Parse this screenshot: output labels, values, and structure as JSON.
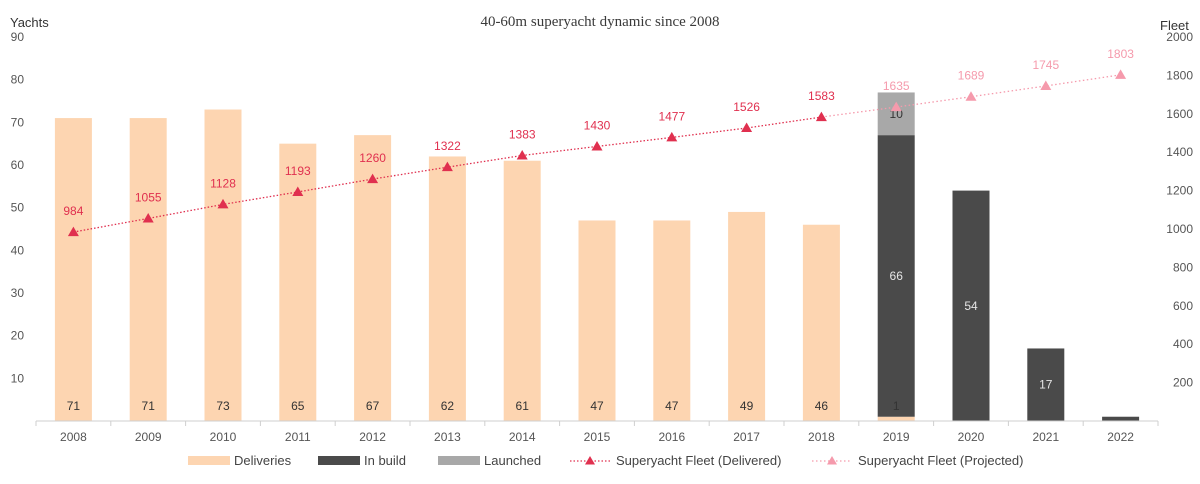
{
  "chart_data": {
    "type": "bar",
    "title": "40-60m superyacht dynamic since 2008",
    "y_left_label": "Yachts",
    "y_right_label": "Fleet",
    "y_left_lim": [
      0,
      90
    ],
    "y_left_ticks": [
      10,
      20,
      30,
      40,
      50,
      60,
      70,
      80,
      90
    ],
    "y_right_lim": [
      0,
      2000
    ],
    "y_right_ticks": [
      200,
      400,
      600,
      800,
      1000,
      1200,
      1400,
      1600,
      1800,
      2000
    ],
    "categories": [
      "2008",
      "2009",
      "2010",
      "2011",
      "2012",
      "2013",
      "2014",
      "2015",
      "2016",
      "2017",
      "2018",
      "2019",
      "2020",
      "2021",
      "2022"
    ],
    "series": [
      {
        "name": "Deliveries",
        "kind": "bar",
        "color": "#fdd5b1",
        "values": [
          71,
          71,
          73,
          65,
          67,
          62,
          61,
          47,
          47,
          49,
          46,
          1,
          null,
          null,
          null
        ],
        "labels": [
          "71",
          "71",
          "73",
          "65",
          "67",
          "62",
          "61",
          "47",
          "47",
          "49",
          "46",
          "1",
          "",
          "",
          ""
        ]
      },
      {
        "name": "In build",
        "kind": "bar",
        "color": "#4a4a4a",
        "values": [
          null,
          null,
          null,
          null,
          null,
          null,
          null,
          null,
          null,
          null,
          null,
          66,
          54,
          17,
          1
        ],
        "labels": [
          "",
          "",
          "",
          "",
          "",
          "",
          "",
          "",
          "",
          "",
          "",
          "66",
          "54",
          "17",
          ""
        ]
      },
      {
        "name": "Launched",
        "kind": "bar",
        "color": "#a8a8a8",
        "values": [
          null,
          null,
          null,
          null,
          null,
          null,
          null,
          null,
          null,
          null,
          null,
          10,
          null,
          null,
          null
        ],
        "labels": [
          "",
          "",
          "",
          "",
          "",
          "",
          "",
          "",
          "",
          "",
          "",
          "10",
          "",
          "",
          ""
        ]
      },
      {
        "name": "Superyacht Fleet (Delivered)",
        "kind": "line",
        "axis": "right",
        "color": "#e0304f",
        "values": [
          984,
          1055,
          1128,
          1193,
          1260,
          1322,
          1383,
          1430,
          1477,
          1526,
          1583,
          null,
          null,
          null,
          null
        ],
        "labels": [
          "984",
          "1055",
          "1128",
          "1193",
          "1260",
          "1322",
          "1383",
          "1430",
          "1477",
          "1526",
          "1583",
          "",
          "",
          "",
          ""
        ]
      },
      {
        "name": "Superyacht Fleet (Projected)",
        "kind": "line",
        "axis": "right",
        "color": "#f59aac",
        "values": [
          null,
          null,
          null,
          null,
          null,
          null,
          null,
          null,
          null,
          null,
          1583,
          1635,
          1689,
          1745,
          1803
        ],
        "labels": [
          "",
          "",
          "",
          "",
          "",
          "",
          "",
          "",
          "",
          "",
          "",
          "1635",
          "1689",
          "1745",
          "1803"
        ]
      }
    ],
    "grid": false,
    "legend_position": "bottom"
  }
}
